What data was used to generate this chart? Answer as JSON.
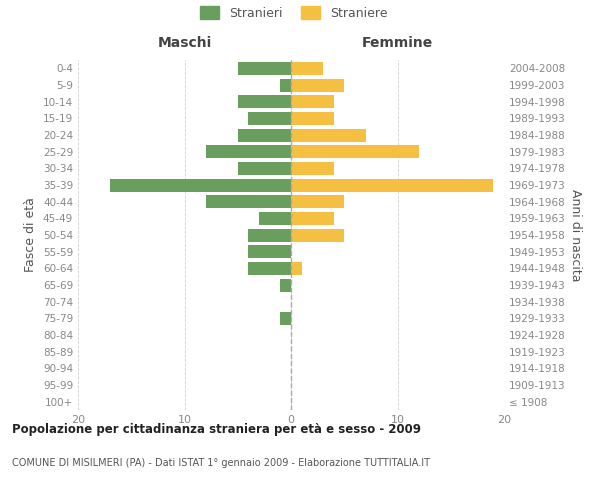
{
  "age_groups": [
    "100+",
    "95-99",
    "90-94",
    "85-89",
    "80-84",
    "75-79",
    "70-74",
    "65-69",
    "60-64",
    "55-59",
    "50-54",
    "45-49",
    "40-44",
    "35-39",
    "30-34",
    "25-29",
    "20-24",
    "15-19",
    "10-14",
    "5-9",
    "0-4"
  ],
  "birth_years": [
    "≤ 1908",
    "1909-1913",
    "1914-1918",
    "1919-1923",
    "1924-1928",
    "1929-1933",
    "1934-1938",
    "1939-1943",
    "1944-1948",
    "1949-1953",
    "1954-1958",
    "1959-1963",
    "1964-1968",
    "1969-1973",
    "1974-1978",
    "1979-1983",
    "1984-1988",
    "1989-1993",
    "1994-1998",
    "1999-2003",
    "2004-2008"
  ],
  "maschi": [
    0,
    0,
    0,
    0,
    0,
    1,
    0,
    1,
    4,
    4,
    4,
    3,
    8,
    17,
    5,
    8,
    5,
    4,
    5,
    1,
    5
  ],
  "femmine": [
    0,
    0,
    0,
    0,
    0,
    0,
    0,
    0,
    1,
    0,
    5,
    4,
    5,
    19,
    4,
    12,
    7,
    4,
    4,
    5,
    3
  ],
  "maschi_color": "#6a9e5e",
  "femmine_color": "#f5bf42",
  "background_color": "#ffffff",
  "grid_color": "#d0d0d0",
  "title": "Popolazione per cittadinanza straniera per età e sesso - 2009",
  "subtitle": "COMUNE DI MISILMERI (PA) - Dati ISTAT 1° gennaio 2009 - Elaborazione TUTTITALIA.IT",
  "xlabel_left": "Maschi",
  "xlabel_right": "Femmine",
  "ylabel_left": "Fasce di età",
  "ylabel_right": "Anni di nascita",
  "legend_maschi": "Stranieri",
  "legend_femmine": "Straniere",
  "xlim": 20,
  "dashed_line_color": "#aaaaaa",
  "text_color": "#555555",
  "tick_label_color": "#888888",
  "header_color": "#444444"
}
